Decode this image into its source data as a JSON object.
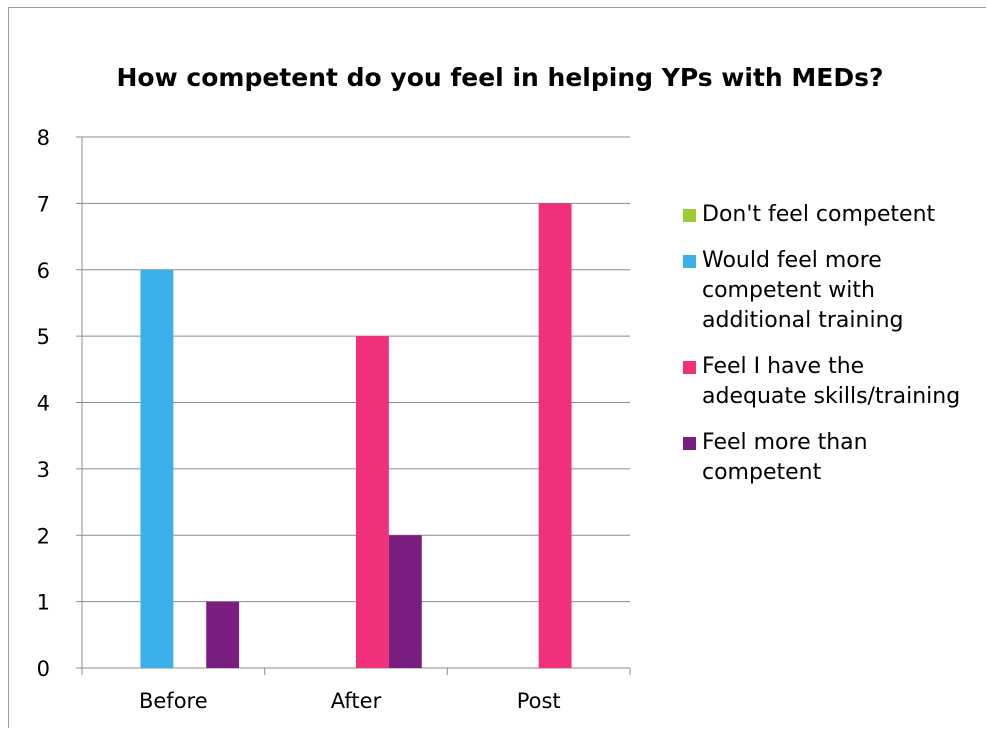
{
  "chart_data": {
    "type": "bar",
    "title": "How competent do you feel in helping YPs with MEDs?",
    "categories": [
      "Before",
      "After",
      "Post"
    ],
    "series": [
      {
        "name": "Don't feel competent",
        "color": "#9ACD32",
        "values": [
          0,
          0,
          0
        ]
      },
      {
        "name": "Would feel more competent with additional training",
        "color": "#3BB0E8",
        "values": [
          6,
          0,
          0
        ]
      },
      {
        "name": "Feel I have the adequate skills/training",
        "color": "#F0307A",
        "values": [
          0,
          5,
          7
        ]
      },
      {
        "name": "Feel more than competent",
        "color": "#7A1F7F",
        "values": [
          1,
          2,
          0
        ]
      }
    ],
    "ylim": [
      0,
      8
    ],
    "yticks": [
      0,
      1,
      2,
      3,
      4,
      5,
      6,
      7,
      8
    ],
    "grid": true,
    "legend_position": "right",
    "xlabel": "",
    "ylabel": ""
  }
}
